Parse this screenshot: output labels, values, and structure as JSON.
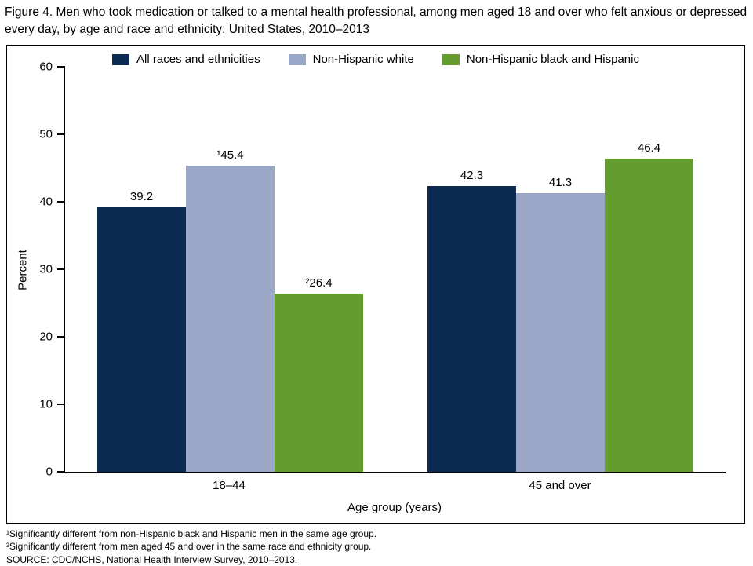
{
  "figure": {
    "title": "Figure 4. Men who took medication or talked to a mental health professional, among men aged 18 and over who felt anxious or depressed every day, by age and race and ethnicity: United States, 2010–2013"
  },
  "footnotes": [
    "¹Significantly different from non-Hispanic black and Hispanic men in the same age group.",
    "²Significantly different from men aged 45 and over in the same race and ethnicity group.",
    "SOURCE: CDC/NCHS, National Health Interview Survey, 2010–2013."
  ],
  "chart_data": {
    "type": "bar",
    "title": "Men who took medication or talked to a mental health professional, among men aged 18 and over who felt anxious or depressed every day, by age and race and ethnicity: United States, 2010–2013",
    "categories": [
      "18–44",
      "45 and over"
    ],
    "series": [
      {
        "name": "All races and ethnicities",
        "color": "#0c2b52",
        "values": [
          39.2,
          42.3
        ],
        "value_labels": [
          "39.2",
          "42.3"
        ]
      },
      {
        "name": "Non-Hispanic white",
        "color": "#9aa7c7",
        "values": [
          45.4,
          41.3
        ],
        "value_labels": [
          "¹45.4",
          "41.3"
        ]
      },
      {
        "name": "Non-Hispanic black and Hispanic",
        "color": "#649c2f",
        "values": [
          26.4,
          46.4
        ],
        "value_labels": [
          "²26.4",
          "46.4"
        ]
      }
    ],
    "xlabel": "Age group (years)",
    "ylabel": "Percent",
    "ylim": [
      0,
      60
    ],
    "ytick_step": 10,
    "legend_position": "top",
    "grid": false
  }
}
